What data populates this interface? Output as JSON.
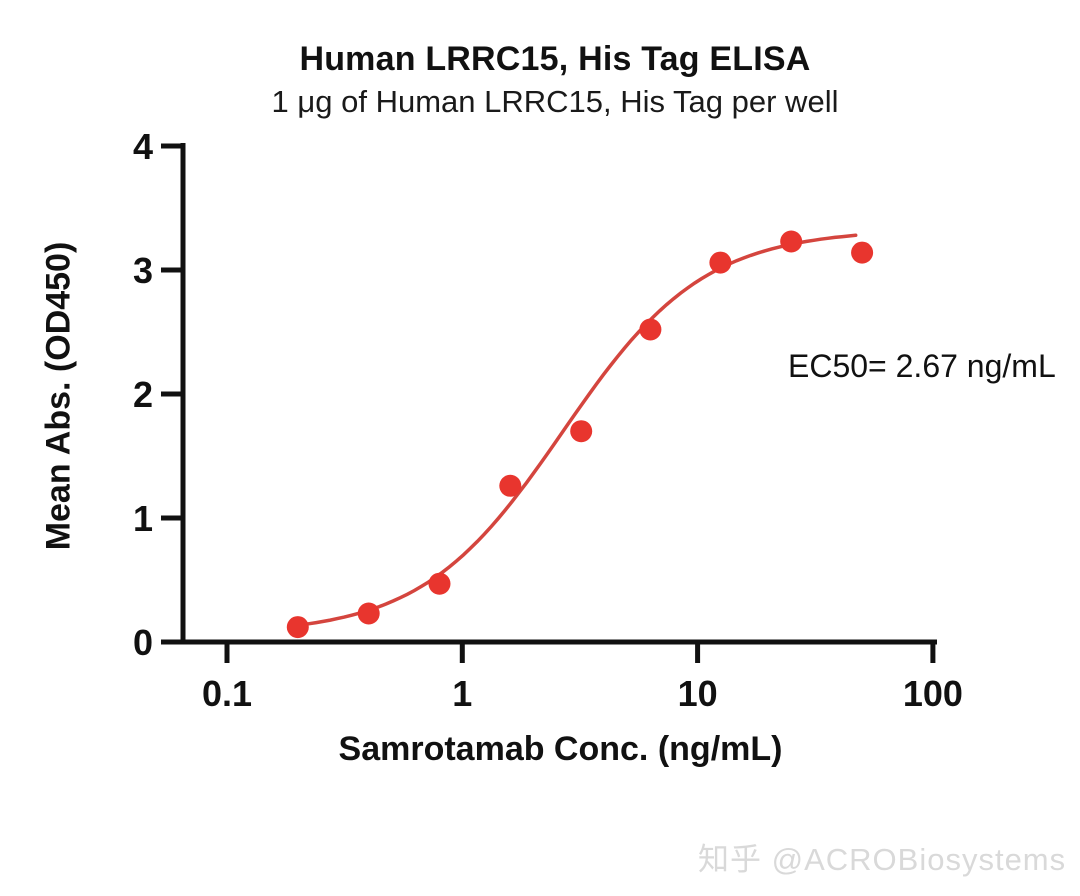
{
  "watermark": {
    "text": "知乎 @ACROBiosystems"
  },
  "chart_data": {
    "type": "scatter",
    "title": "Human LRRC15, His Tag ELISA",
    "subtitle": "1 μg of Human LRRC15, His Tag per well",
    "xlabel": "Samrotamab Conc. (ng/mL)",
    "ylabel": "Mean Abs. (OD450)",
    "x_scale": "log",
    "xlim": [
      0.1,
      100
    ],
    "ylim": [
      0,
      4
    ],
    "x_ticks": [
      0.1,
      1,
      10,
      100
    ],
    "x_tick_labels": [
      "0.1",
      "1",
      "10",
      "100"
    ],
    "y_ticks": [
      0,
      1,
      2,
      3,
      4
    ],
    "grid": false,
    "legend": "none",
    "x": [
      0.2,
      0.4,
      0.8,
      1.6,
      3.2,
      6.3,
      12.5,
      25,
      50
    ],
    "y": [
      0.12,
      0.23,
      0.47,
      1.26,
      1.7,
      2.52,
      3.06,
      3.23,
      3.14
    ],
    "annotation": "EC50= 2.67 ng/mL",
    "ec50_ng_ml": 2.67,
    "fit": {
      "model": "4PL",
      "bottom": 0.06,
      "top": 3.33,
      "hill": 1.45,
      "ec50": 2.67,
      "curve_x_range": [
        0.195,
        47
      ]
    },
    "colors": {
      "points": "#e8352e",
      "line": "#d4453e",
      "axis": "#111111"
    }
  }
}
